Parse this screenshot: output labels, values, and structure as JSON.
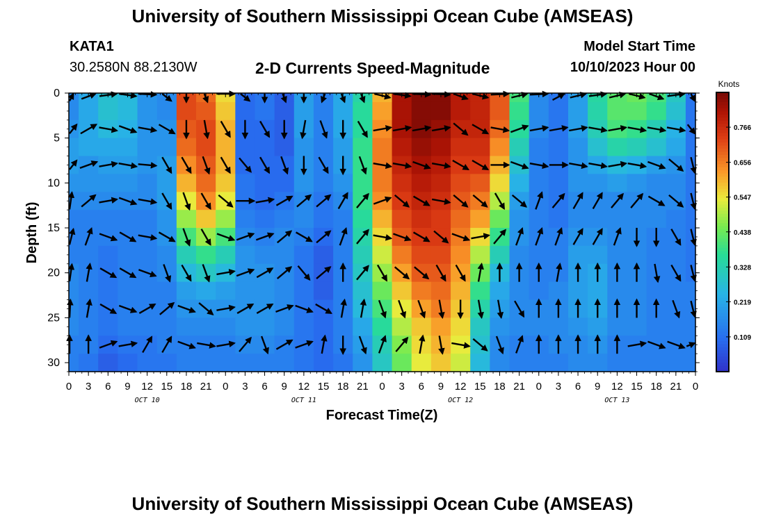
{
  "header": {
    "title": "University of Southern Mississippi Ocean Cube (AMSEAS)",
    "station_id": "KATA1",
    "station_coords": "30.2580N  88.2130W",
    "plot_title": "2-D Currents Speed-Magnitude",
    "model_start_label": "Model Start Time",
    "model_start_value": "10/10/2023 Hour 00"
  },
  "footer": {
    "title": "University of Southern Mississippi Ocean Cube (AMSEAS)"
  },
  "chart_data": {
    "type": "heatmap",
    "title": "2-D Currents Speed-Magnitude",
    "xlabel": "Forecast Time(Z)",
    "ylabel": "Depth (ft)",
    "x_range_hours": [
      0,
      96
    ],
    "ylim": [
      0,
      31
    ],
    "y_inverted": true,
    "x_tick_hours": [
      0,
      3,
      6,
      9,
      12,
      15,
      18,
      21,
      24,
      27,
      30,
      33,
      36,
      39,
      42,
      45,
      48,
      51,
      54,
      57,
      60,
      63,
      66,
      69,
      72,
      75,
      78,
      81,
      84,
      87,
      90,
      93,
      96
    ],
    "x_tick_labels": [
      "0",
      "3",
      "6",
      "9",
      "12",
      "15",
      "18",
      "21",
      "0",
      "3",
      "6",
      "9",
      "12",
      "15",
      "18",
      "21",
      "0",
      "3",
      "6",
      "9",
      "12",
      "15",
      "18",
      "21",
      "0",
      "3",
      "6",
      "9",
      "12",
      "15",
      "18",
      "21",
      "0"
    ],
    "date_labels": [
      {
        "text": "OCT 10",
        "hour": 12
      },
      {
        "text": "OCT 11",
        "hour": 36
      },
      {
        "text": "OCT 12",
        "hour": 60
      },
      {
        "text": "OCT 13",
        "hour": 84
      }
    ],
    "y_ticks": [
      0,
      5,
      10,
      15,
      20,
      25,
      30
    ],
    "y_tick_labels": [
      "0",
      "5",
      "10",
      "15",
      "20",
      "25",
      "30"
    ],
    "colorbar": {
      "unit": "Knots",
      "min": 0.0,
      "max": 0.875,
      "ticks": [
        0.109,
        0.219,
        0.328,
        0.438,
        0.547,
        0.656,
        0.766
      ],
      "tick_labels": [
        "0.109",
        "0.219",
        "0.328",
        "0.438",
        "0.547",
        "0.656",
        "0.766"
      ]
    },
    "depths_ft": [
      0,
      2,
      4,
      6,
      8,
      10,
      12,
      14,
      16,
      18,
      20,
      22,
      24,
      26,
      28,
      30
    ],
    "time_columns_hours": [
      0,
      3,
      6,
      9,
      12,
      15,
      18,
      21,
      24,
      27,
      30,
      33,
      36,
      39,
      42,
      45,
      48,
      51,
      54,
      57,
      60,
      63,
      66,
      69,
      72,
      75,
      78,
      81,
      84,
      87,
      90,
      93,
      96
    ],
    "speed_knots_by_depth": [
      [
        0.16,
        0.22,
        0.28,
        0.26,
        0.18,
        0.16,
        0.72,
        0.68,
        0.56,
        0.1,
        0.12,
        0.08,
        0.2,
        0.14,
        0.22,
        0.34,
        0.6,
        0.82,
        0.86,
        0.86,
        0.8,
        0.78,
        0.7,
        0.4,
        0.16,
        0.12,
        0.2,
        0.35,
        0.42,
        0.44,
        0.4,
        0.3,
        0.12
      ],
      [
        0.16,
        0.22,
        0.28,
        0.26,
        0.18,
        0.16,
        0.72,
        0.7,
        0.58,
        0.1,
        0.12,
        0.08,
        0.2,
        0.14,
        0.22,
        0.36,
        0.62,
        0.82,
        0.86,
        0.86,
        0.8,
        0.78,
        0.7,
        0.38,
        0.16,
        0.12,
        0.2,
        0.34,
        0.42,
        0.42,
        0.38,
        0.28,
        0.12
      ],
      [
        0.18,
        0.22,
        0.26,
        0.24,
        0.18,
        0.18,
        0.7,
        0.72,
        0.6,
        0.1,
        0.1,
        0.08,
        0.2,
        0.14,
        0.22,
        0.36,
        0.64,
        0.82,
        0.86,
        0.84,
        0.78,
        0.78,
        0.68,
        0.36,
        0.16,
        0.12,
        0.2,
        0.32,
        0.4,
        0.38,
        0.32,
        0.24,
        0.12
      ],
      [
        0.2,
        0.22,
        0.22,
        0.22,
        0.18,
        0.18,
        0.68,
        0.72,
        0.6,
        0.1,
        0.1,
        0.08,
        0.18,
        0.14,
        0.2,
        0.38,
        0.66,
        0.8,
        0.84,
        0.82,
        0.76,
        0.76,
        0.64,
        0.32,
        0.14,
        0.12,
        0.18,
        0.28,
        0.34,
        0.32,
        0.28,
        0.22,
        0.12
      ],
      [
        0.2,
        0.18,
        0.2,
        0.2,
        0.18,
        0.2,
        0.64,
        0.7,
        0.6,
        0.1,
        0.1,
        0.1,
        0.18,
        0.14,
        0.2,
        0.38,
        0.66,
        0.78,
        0.82,
        0.8,
        0.74,
        0.74,
        0.6,
        0.28,
        0.14,
        0.12,
        0.18,
        0.22,
        0.26,
        0.24,
        0.2,
        0.18,
        0.12
      ],
      [
        0.18,
        0.18,
        0.18,
        0.18,
        0.16,
        0.2,
        0.6,
        0.68,
        0.58,
        0.12,
        0.1,
        0.1,
        0.18,
        0.14,
        0.18,
        0.38,
        0.66,
        0.76,
        0.8,
        0.78,
        0.72,
        0.7,
        0.56,
        0.24,
        0.14,
        0.12,
        0.18,
        0.18,
        0.2,
        0.18,
        0.16,
        0.16,
        0.12
      ],
      [
        0.16,
        0.16,
        0.16,
        0.16,
        0.16,
        0.2,
        0.54,
        0.64,
        0.54,
        0.12,
        0.1,
        0.12,
        0.16,
        0.12,
        0.16,
        0.38,
        0.64,
        0.74,
        0.78,
        0.76,
        0.7,
        0.66,
        0.5,
        0.2,
        0.14,
        0.12,
        0.16,
        0.16,
        0.16,
        0.16,
        0.16,
        0.16,
        0.12
      ],
      [
        0.14,
        0.14,
        0.14,
        0.14,
        0.14,
        0.18,
        0.48,
        0.58,
        0.48,
        0.14,
        0.12,
        0.14,
        0.16,
        0.12,
        0.14,
        0.36,
        0.6,
        0.72,
        0.76,
        0.74,
        0.68,
        0.62,
        0.44,
        0.18,
        0.14,
        0.12,
        0.16,
        0.16,
        0.16,
        0.16,
        0.16,
        0.14,
        0.12
      ],
      [
        0.14,
        0.14,
        0.14,
        0.14,
        0.14,
        0.18,
        0.4,
        0.48,
        0.4,
        0.16,
        0.14,
        0.16,
        0.14,
        0.1,
        0.14,
        0.34,
        0.56,
        0.7,
        0.74,
        0.74,
        0.66,
        0.56,
        0.38,
        0.18,
        0.14,
        0.14,
        0.18,
        0.18,
        0.16,
        0.16,
        0.14,
        0.14,
        0.12
      ],
      [
        0.14,
        0.14,
        0.12,
        0.14,
        0.14,
        0.16,
        0.32,
        0.38,
        0.32,
        0.18,
        0.16,
        0.16,
        0.12,
        0.08,
        0.14,
        0.32,
        0.52,
        0.66,
        0.72,
        0.72,
        0.64,
        0.5,
        0.32,
        0.16,
        0.14,
        0.14,
        0.2,
        0.2,
        0.16,
        0.16,
        0.14,
        0.14,
        0.12
      ],
      [
        0.16,
        0.14,
        0.12,
        0.14,
        0.14,
        0.16,
        0.26,
        0.3,
        0.26,
        0.18,
        0.18,
        0.16,
        0.12,
        0.08,
        0.14,
        0.3,
        0.48,
        0.62,
        0.7,
        0.7,
        0.62,
        0.44,
        0.26,
        0.16,
        0.14,
        0.14,
        0.2,
        0.22,
        0.16,
        0.16,
        0.14,
        0.14,
        0.12
      ],
      [
        0.16,
        0.14,
        0.12,
        0.14,
        0.14,
        0.14,
        0.2,
        0.22,
        0.2,
        0.18,
        0.18,
        0.16,
        0.12,
        0.08,
        0.14,
        0.28,
        0.44,
        0.58,
        0.66,
        0.68,
        0.6,
        0.38,
        0.22,
        0.16,
        0.14,
        0.16,
        0.2,
        0.22,
        0.16,
        0.16,
        0.14,
        0.14,
        0.14
      ],
      [
        0.16,
        0.14,
        0.12,
        0.14,
        0.14,
        0.14,
        0.18,
        0.18,
        0.18,
        0.18,
        0.18,
        0.16,
        0.12,
        0.1,
        0.14,
        0.26,
        0.4,
        0.54,
        0.62,
        0.66,
        0.58,
        0.34,
        0.2,
        0.16,
        0.16,
        0.16,
        0.2,
        0.22,
        0.16,
        0.16,
        0.14,
        0.14,
        0.14
      ],
      [
        0.16,
        0.14,
        0.12,
        0.14,
        0.14,
        0.14,
        0.16,
        0.16,
        0.16,
        0.18,
        0.18,
        0.16,
        0.12,
        0.1,
        0.14,
        0.22,
        0.36,
        0.5,
        0.58,
        0.62,
        0.56,
        0.3,
        0.18,
        0.16,
        0.16,
        0.16,
        0.18,
        0.2,
        0.16,
        0.16,
        0.14,
        0.14,
        0.14
      ],
      [
        0.14,
        0.14,
        0.1,
        0.12,
        0.12,
        0.14,
        0.14,
        0.14,
        0.14,
        0.16,
        0.16,
        0.14,
        0.12,
        0.1,
        0.14,
        0.2,
        0.32,
        0.46,
        0.56,
        0.6,
        0.54,
        0.28,
        0.16,
        0.14,
        0.14,
        0.16,
        0.16,
        0.18,
        0.14,
        0.14,
        0.14,
        0.14,
        0.14
      ],
      [
        0.14,
        0.12,
        0.08,
        0.1,
        0.12,
        0.12,
        0.14,
        0.14,
        0.14,
        0.14,
        0.14,
        0.14,
        0.12,
        0.1,
        0.12,
        0.18,
        0.3,
        0.44,
        0.54,
        0.58,
        0.52,
        0.26,
        0.16,
        0.14,
        0.14,
        0.14,
        0.16,
        0.16,
        0.14,
        0.14,
        0.14,
        0.14,
        0.14
      ]
    ],
    "arrow_grid": {
      "time_hours": [
        0,
        3,
        6,
        9,
        12,
        15,
        18,
        21,
        24,
        27,
        30,
        33,
        36,
        39,
        42,
        45,
        48,
        51,
        54,
        57,
        60,
        63,
        66,
        69,
        72,
        75,
        78,
        81,
        84,
        87,
        90,
        93,
        96
      ],
      "depths_ft": [
        0,
        4,
        8,
        12,
        16,
        20,
        24,
        28
      ],
      "direction_deg_from_east": [
        [
          60,
          40,
          20,
          -20,
          -10,
          -60,
          -90,
          -80,
          0,
          -60,
          -90,
          -80,
          -90,
          -100,
          -80,
          -80,
          -30,
          -20,
          -10,
          -10,
          -40,
          -30,
          10,
          30,
          10,
          50,
          30,
          20,
          30,
          -30,
          -40,
          20,
          -60
        ],
        [
          30,
          30,
          -10,
          -20,
          -10,
          -30,
          -90,
          -80,
          -60,
          -90,
          -60,
          -90,
          -100,
          -70,
          -90,
          -60,
          10,
          10,
          10,
          10,
          -40,
          -30,
          -10,
          20,
          10,
          10,
          10,
          -10,
          10,
          -10,
          -10,
          -10,
          -30
        ],
        [
          30,
          20,
          10,
          -10,
          -5,
          -60,
          -60,
          -70,
          -60,
          -50,
          -60,
          -70,
          -90,
          -60,
          -90,
          -70,
          -10,
          -10,
          -20,
          -10,
          -30,
          -30,
          0,
          -20,
          -10,
          0,
          -10,
          -10,
          10,
          -10,
          -20,
          -40,
          -60
        ],
        [
          70,
          40,
          10,
          -20,
          -10,
          -60,
          -70,
          -60,
          -40,
          0,
          10,
          30,
          40,
          40,
          60,
          50,
          20,
          -40,
          -30,
          -10,
          -40,
          -40,
          -60,
          -40,
          70,
          50,
          60,
          60,
          50,
          50,
          -30,
          -40,
          -60
        ],
        [
          60,
          70,
          -20,
          -30,
          -10,
          -30,
          -70,
          -60,
          -20,
          20,
          20,
          40,
          -30,
          40,
          70,
          50,
          -10,
          -20,
          -30,
          -40,
          -20,
          10,
          50,
          70,
          70,
          70,
          60,
          60,
          70,
          -90,
          -90,
          -60,
          -60
        ],
        [
          70,
          80,
          -30,
          -30,
          -20,
          -70,
          -60,
          -70,
          10,
          20,
          30,
          40,
          -50,
          40,
          90,
          50,
          -60,
          -40,
          -40,
          -60,
          -60,
          80,
          90,
          90,
          90,
          80,
          90,
          90,
          90,
          90,
          -80,
          -60,
          -60
        ],
        [
          80,
          80,
          -30,
          -20,
          30,
          40,
          -20,
          -40,
          10,
          30,
          30,
          20,
          -20,
          -30,
          80,
          80,
          -70,
          -70,
          -70,
          -80,
          -90,
          -80,
          -80,
          -60,
          90,
          90,
          90,
          90,
          90,
          90,
          90,
          -70,
          -60
        ],
        [
          90,
          90,
          20,
          10,
          60,
          60,
          -20,
          -10,
          10,
          50,
          -70,
          30,
          20,
          80,
          -90,
          -70,
          70,
          50,
          80,
          -80,
          -10,
          -40,
          -70,
          70,
          90,
          90,
          90,
          90,
          90,
          10,
          -20,
          -20,
          10
        ]
      ]
    }
  }
}
